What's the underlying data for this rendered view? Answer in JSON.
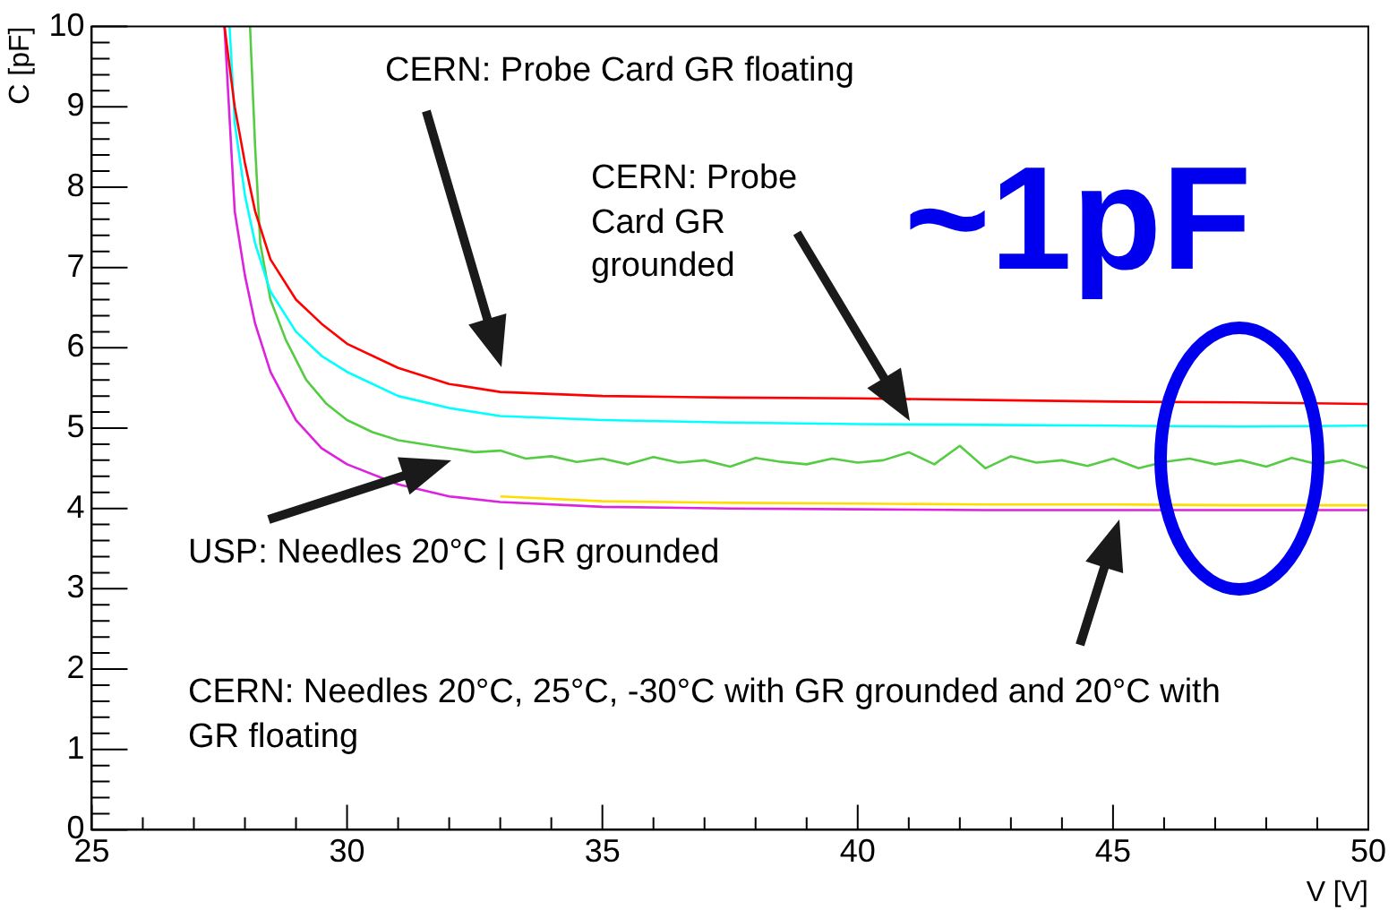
{
  "chart_data": {
    "type": "line",
    "xlabel": "V [V]",
    "ylabel": "C [pF]",
    "xlim": [
      25,
      50
    ],
    "ylim": [
      0,
      10
    ],
    "xticks": [
      25,
      30,
      35,
      40,
      45,
      50
    ],
    "yticks": [
      0,
      1,
      2,
      3,
      4,
      5,
      6,
      7,
      8,
      9,
      10
    ],
    "grid": false,
    "legend": false,
    "marker": "none",
    "line_style": "solid",
    "annotations": [
      "CERN: Probe Card GR floating",
      "CERN: Probe Card GR grounded",
      "~1pF",
      "USP: Needles 20°C | GR grounded",
      "CERN: Needles 20°C, 25°C, -30°C with GR grounded and 20°C with GR floating"
    ],
    "series": [
      {
        "color": "#ff0000",
        "x": [
          27.6,
          27.8,
          28,
          28.2,
          28.5,
          29,
          29.5,
          30,
          31,
          32,
          33,
          35,
          37.5,
          40,
          42.5,
          45,
          47.5,
          50
        ],
        "values": [
          10,
          9.0,
          8.3,
          7.7,
          7.1,
          6.6,
          6.3,
          6.05,
          5.75,
          5.55,
          5.45,
          5.4,
          5.38,
          5.37,
          5.35,
          5.33,
          5.32,
          5.3
        ]
      },
      {
        "color": "#00ffff",
        "x": [
          27.7,
          27.8,
          28,
          28.2,
          28.5,
          29,
          29.5,
          30,
          31,
          32,
          33,
          35,
          37.5,
          40,
          42.5,
          45,
          47.5,
          50
        ],
        "values": [
          10,
          8.8,
          7.9,
          7.3,
          6.7,
          6.2,
          5.9,
          5.7,
          5.4,
          5.25,
          5.15,
          5.1,
          5.07,
          5.05,
          5.04,
          5.03,
          5.02,
          5.03
        ]
      },
      {
        "color": "#55cc44",
        "x": [
          28.1,
          28.2,
          28.3,
          28.5,
          28.8,
          29.2,
          29.6,
          30,
          30.5,
          31,
          31.5,
          32,
          32.5,
          33,
          33.5,
          34,
          34.5,
          35,
          35.5,
          36,
          36.5,
          37,
          37.5,
          38,
          38.5,
          39,
          39.5,
          40,
          40.5,
          41,
          41.5,
          42,
          42.5,
          43,
          43.5,
          44,
          44.5,
          45,
          45.5,
          46,
          46.5,
          47,
          47.5,
          48,
          48.5,
          49,
          49.5,
          50
        ],
        "values": [
          10,
          8.5,
          7.3,
          6.6,
          6.1,
          5.6,
          5.3,
          5.1,
          4.95,
          4.85,
          4.8,
          4.75,
          4.7,
          4.72,
          4.62,
          4.65,
          4.58,
          4.62,
          4.55,
          4.64,
          4.57,
          4.6,
          4.52,
          4.63,
          4.58,
          4.55,
          4.62,
          4.57,
          4.6,
          4.7,
          4.55,
          4.78,
          4.5,
          4.65,
          4.57,
          4.6,
          4.53,
          4.62,
          4.5,
          4.58,
          4.62,
          4.55,
          4.6,
          4.52,
          4.63,
          4.55,
          4.6,
          4.5
        ]
      },
      {
        "color": "#ffdd00",
        "x": [
          33,
          35,
          37.5,
          40,
          42.5,
          45,
          47.5,
          50
        ],
        "values": [
          4.15,
          4.09,
          4.07,
          4.06,
          4.05,
          4.05,
          4.04,
          4.04
        ]
      },
      {
        "color": "#dd22dd",
        "x": [
          27.6,
          27.8,
          28,
          28.2,
          28.5,
          29,
          29.5,
          30,
          31,
          32,
          33,
          35,
          37.5,
          40,
          42.5,
          45,
          47.5,
          50
        ],
        "values": [
          10,
          7.7,
          6.9,
          6.3,
          5.7,
          5.1,
          4.75,
          4.55,
          4.3,
          4.15,
          4.08,
          4.02,
          4.0,
          3.99,
          3.98,
          3.98,
          3.98,
          3.98
        ]
      }
    ]
  }
}
